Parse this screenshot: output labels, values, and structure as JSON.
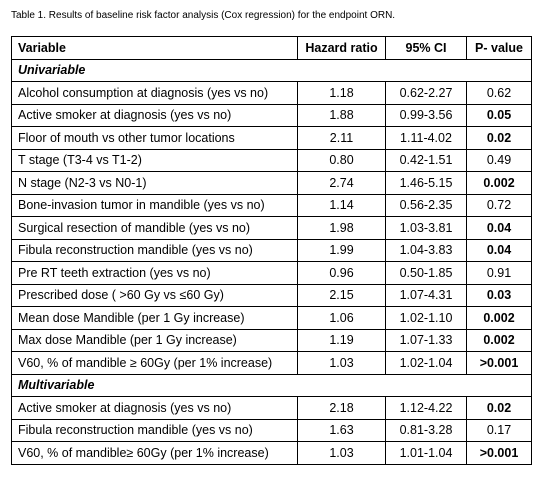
{
  "caption": "Table 1. Results of baseline risk factor analysis (Cox regression) for the endpoint ORN.",
  "table": {
    "header": [
      "Variable",
      "Hazard ratio",
      "95% CI",
      "P- value"
    ],
    "sections": [
      {
        "label": "Univariable",
        "rows": [
          [
            "Alcohol consumption at diagnosis (yes vs no)",
            "1.18",
            "0.62-2.27",
            "0.62"
          ],
          [
            "Active smoker at diagnosis (yes vs no)",
            "1.88",
            "0.99-3.56",
            "0.05"
          ],
          [
            "Floor of mouth vs other tumor locations",
            "2.11",
            "1.11-4.02",
            "0.02"
          ],
          [
            "T stage (T3-4 vs T1-2)",
            "0.80",
            "0.42-1.51",
            "0.49"
          ],
          [
            "N stage (N2-3 vs N0-1)",
            "2.74",
            "1.46-5.15",
            "0.002"
          ],
          [
            "Bone-invasion tumor in mandible (yes vs no)",
            "1.14",
            "0.56-2.35",
            "0.72"
          ],
          [
            "Surgical resection of mandible (yes vs no)",
            "1.98",
            "1.03-3.81",
            "0.04"
          ],
          [
            "Fibula reconstruction mandible (yes vs no)",
            "1.99",
            "1.04-3.83",
            "0.04"
          ],
          [
            "Pre RT teeth extraction (yes vs no)",
            "0.96",
            "0.50-1.85",
            "0.91"
          ],
          [
            "Prescribed dose ( >60 Gy vs ≤60 Gy)",
            "2.15",
            "1.07-4.31",
            "0.03"
          ],
          [
            "Mean dose Mandible (per 1 Gy increase)",
            "1.06",
            "1.02-1.10",
            "0.002"
          ],
          [
            "Max dose Mandible (per 1 Gy increase)",
            "1.19",
            "1.07-1.33",
            "0.002"
          ],
          [
            "V60, % of mandible ≥ 60Gy (per 1% increase)",
            "1.03",
            "1.02-1.04",
            ">0.001"
          ]
        ]
      },
      {
        "label": "Multivariable",
        "rows": [
          [
            "Active smoker at diagnosis (yes vs no)",
            "2.18",
            "1.12-4.22",
            "0.02"
          ],
          [
            "Fibula reconstruction mandible (yes vs no)",
            "1.63",
            "0.81-3.28",
            "0.17"
          ],
          [
            "V60, % of mandible≥ 60Gy (per 1% increase)",
            "1.03",
            "1.01-1.04",
            ">0.001"
          ]
        ]
      }
    ]
  }
}
